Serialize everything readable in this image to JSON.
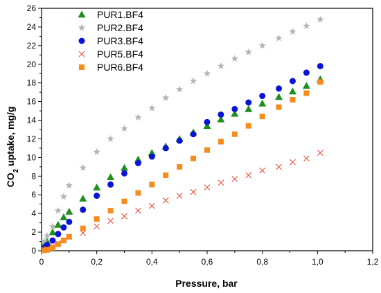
{
  "chart_data": {
    "type": "scatter",
    "xlabel": "Pressure, bar",
    "ylabel_main": "CO",
    "ylabel_sub": "2",
    "ylabel_rest": " uptake,  mg/g",
    "xlim": [
      0,
      1.2
    ],
    "ylim": [
      0,
      26
    ],
    "x_ticks": [
      0,
      0.2,
      0.4,
      0.6,
      0.8,
      1.0,
      1.2
    ],
    "x_tick_labels": [
      "0",
      "0,2",
      "0,4",
      "0,6",
      "0,8",
      "1,0",
      "1,2"
    ],
    "y_ticks": [
      0,
      2,
      4,
      6,
      8,
      10,
      12,
      14,
      16,
      18,
      20,
      22,
      24,
      26
    ],
    "y_tick_labels": [
      "0",
      "2",
      "4",
      "6",
      "8",
      "10",
      "12",
      "14",
      "16",
      "18",
      "20",
      "22",
      "24",
      "26"
    ],
    "grid": false,
    "legend_position": "top-left",
    "series": [
      {
        "name": "PUR1.BF4",
        "marker": "triangle",
        "color": "#1f8f1f",
        "x": [
          0.01,
          0.02,
          0.04,
          0.06,
          0.08,
          0.1,
          0.15,
          0.2,
          0.25,
          0.3,
          0.35,
          0.4,
          0.45,
          0.5,
          0.55,
          0.6,
          0.65,
          0.7,
          0.75,
          0.8,
          0.86,
          0.91,
          0.96,
          1.01
        ],
        "y": [
          0.6,
          1.0,
          2.0,
          2.8,
          3.6,
          4.2,
          5.6,
          6.8,
          7.9,
          8.9,
          9.8,
          10.5,
          11.2,
          12.0,
          12.7,
          13.4,
          14.1,
          14.7,
          15.2,
          15.8,
          16.5,
          17.1,
          17.7,
          18.4
        ]
      },
      {
        "name": "PUR2.BF4",
        "marker": "star",
        "color": "#b4b4b4",
        "x": [
          0.01,
          0.02,
          0.04,
          0.06,
          0.08,
          0.1,
          0.15,
          0.2,
          0.25,
          0.3,
          0.35,
          0.4,
          0.45,
          0.5,
          0.55,
          0.6,
          0.65,
          0.7,
          0.75,
          0.8,
          0.86,
          0.91,
          0.96,
          1.01
        ],
        "y": [
          1.0,
          1.6,
          2.6,
          4.3,
          5.8,
          7.0,
          8.9,
          10.6,
          12.0,
          13.1,
          14.3,
          15.3,
          16.4,
          17.3,
          18.2,
          19.0,
          19.8,
          20.6,
          21.3,
          22.0,
          22.8,
          23.5,
          24.1,
          24.8
        ]
      },
      {
        "name": "PUR3.BF4",
        "marker": "circle",
        "color": "#0a14d8",
        "x": [
          0.01,
          0.02,
          0.04,
          0.06,
          0.08,
          0.1,
          0.15,
          0.2,
          0.25,
          0.3,
          0.35,
          0.4,
          0.45,
          0.5,
          0.55,
          0.6,
          0.65,
          0.7,
          0.75,
          0.8,
          0.86,
          0.91,
          0.96,
          1.01
        ],
        "y": [
          0.3,
          0.6,
          1.1,
          1.8,
          2.5,
          3.1,
          4.4,
          5.9,
          7.1,
          8.3,
          9.4,
          10.1,
          11.0,
          11.8,
          12.5,
          13.8,
          14.6,
          15.2,
          15.9,
          16.6,
          17.4,
          18.2,
          19.1,
          19.8
        ]
      },
      {
        "name": "PUR5.BF4",
        "marker": "cross",
        "color": "#e8503c",
        "x": [
          0.01,
          0.02,
          0.04,
          0.06,
          0.08,
          0.1,
          0.15,
          0.2,
          0.25,
          0.3,
          0.35,
          0.4,
          0.45,
          0.5,
          0.55,
          0.6,
          0.65,
          0.7,
          0.75,
          0.8,
          0.86,
          0.91,
          0.96,
          1.01
        ],
        "y": [
          0.1,
          0.2,
          0.5,
          0.8,
          1.1,
          1.5,
          1.9,
          2.6,
          3.2,
          3.7,
          4.3,
          4.8,
          5.4,
          5.9,
          6.3,
          6.8,
          7.3,
          7.7,
          8.1,
          8.6,
          9.0,
          9.5,
          9.9,
          10.5
        ]
      },
      {
        "name": "PUR6.BF4",
        "marker": "square",
        "color": "#f58c1e",
        "x": [
          0.01,
          0.02,
          0.04,
          0.06,
          0.08,
          0.1,
          0.15,
          0.2,
          0.25,
          0.3,
          0.35,
          0.4,
          0.45,
          0.5,
          0.55,
          0.6,
          0.65,
          0.7,
          0.75,
          0.8,
          0.86,
          0.91,
          0.96,
          1.01
        ],
        "y": [
          0.05,
          0.1,
          0.3,
          0.7,
          1.1,
          1.5,
          2.4,
          3.4,
          4.3,
          5.3,
          6.2,
          7.1,
          8.1,
          9.0,
          9.9,
          10.8,
          11.7,
          12.5,
          13.4,
          14.4,
          15.4,
          16.2,
          16.9,
          18.1
        ]
      }
    ]
  }
}
